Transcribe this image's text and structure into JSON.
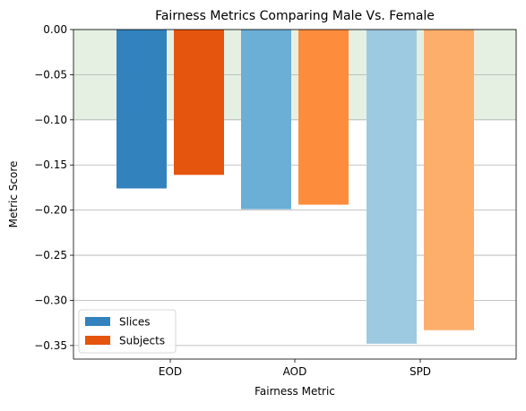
{
  "chart_data": {
    "type": "bar",
    "title": "Fairness Metrics Comparing Male Vs. Female",
    "xlabel": "Fairness Metric",
    "ylabel": "Metric Score",
    "categories": [
      "EOD",
      "AOD",
      "SPD"
    ],
    "series": [
      {
        "name": "Slices",
        "values": [
          -0.176,
          -0.199,
          -0.348
        ],
        "colors": [
          "#3182bd",
          "#6baed6",
          "#9ecae1"
        ]
      },
      {
        "name": "Subjects",
        "values": [
          -0.161,
          -0.194,
          -0.333
        ],
        "colors": [
          "#e6550d",
          "#fd8d3c",
          "#fdae6b"
        ]
      }
    ],
    "ylim": [
      -0.365,
      0.0
    ],
    "yticks": [
      "0.00",
      "−0.05",
      "−0.10",
      "−0.15",
      "−0.20",
      "−0.25",
      "−0.30",
      "−0.35"
    ],
    "ytick_values": [
      0.0,
      -0.05,
      -0.1,
      -0.15,
      -0.2,
      -0.25,
      -0.3,
      -0.35
    ],
    "fair_band": {
      "from": -0.1,
      "to": 0.0,
      "color": "#e5f0e3"
    },
    "grid": "y",
    "legend_position": "lower-left",
    "legend_colors": [
      "#3182bd",
      "#e6550d"
    ]
  }
}
